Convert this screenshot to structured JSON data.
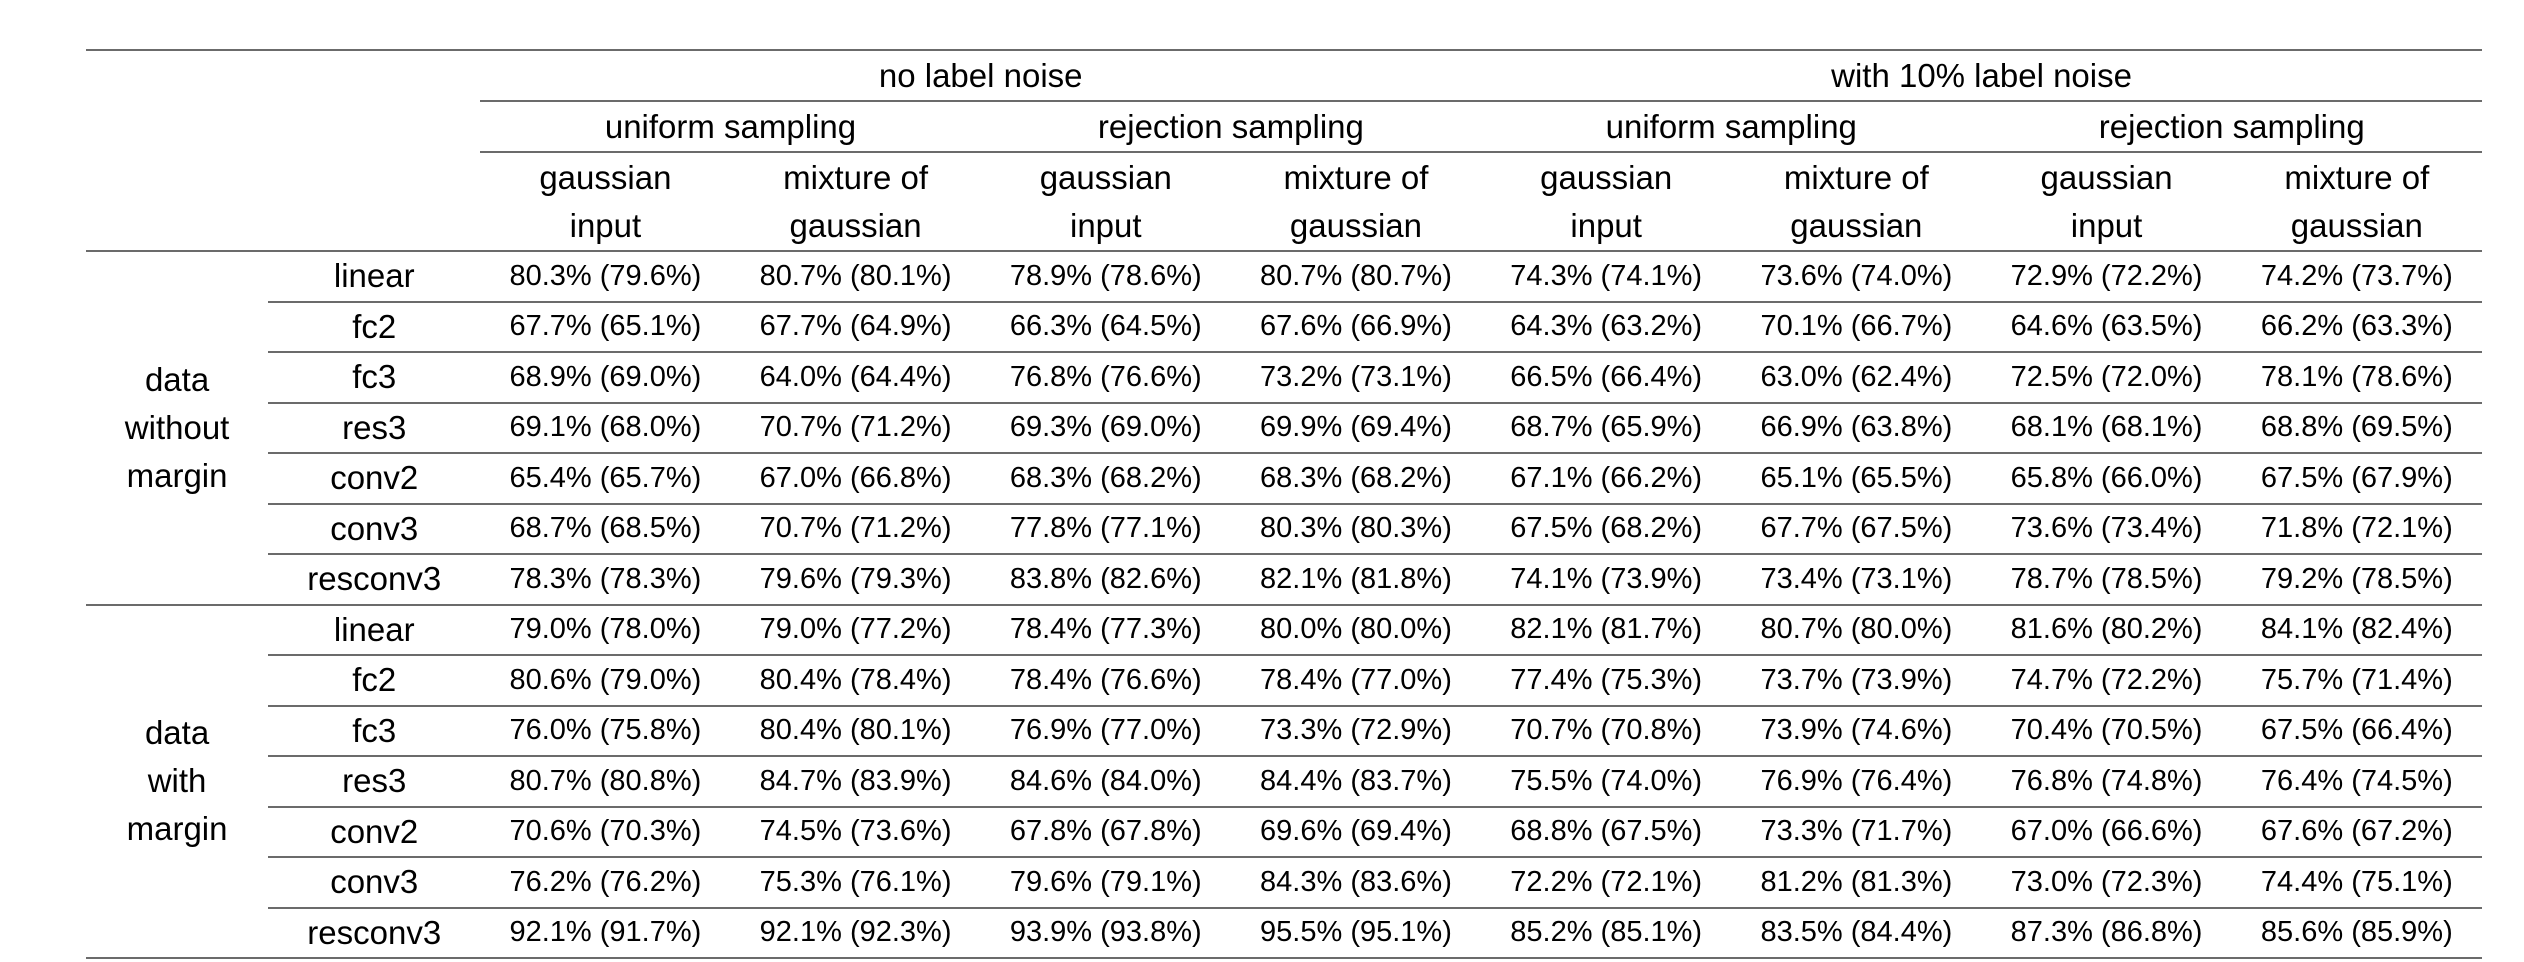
{
  "header": {
    "noise_groups": [
      "no label noise",
      "with 10% label noise"
    ],
    "sampling_groups": [
      "uniform sampling",
      "rejection sampling",
      "uniform sampling",
      "rejection sampling"
    ],
    "input_types": [
      {
        "line1": "gaussian",
        "line2": "input"
      },
      {
        "line1": "mixture of",
        "line2": "gaussian"
      },
      {
        "line1": "gaussian",
        "line2": "input"
      },
      {
        "line1": "mixture of",
        "line2": "gaussian"
      },
      {
        "line1": "gaussian",
        "line2": "input"
      },
      {
        "line1": "mixture of",
        "line2": "gaussian"
      },
      {
        "line1": "gaussian",
        "line2": "input"
      },
      {
        "line1": "mixture of",
        "line2": "gaussian"
      }
    ]
  },
  "sections": [
    {
      "label_lines": [
        "data",
        "without",
        "margin"
      ],
      "rows": [
        {
          "model": "linear",
          "values": [
            "80.3% (79.6%)",
            "80.7% (80.1%)",
            "78.9% (78.6%)",
            "80.7% (80.7%)",
            "74.3% (74.1%)",
            "73.6% (74.0%)",
            "72.9% (72.2%)",
            "74.2% (73.7%)"
          ]
        },
        {
          "model": "fc2",
          "values": [
            "67.7% (65.1%)",
            "67.7% (64.9%)",
            "66.3% (64.5%)",
            "67.6% (66.9%)",
            "64.3% (63.2%)",
            "70.1% (66.7%)",
            "64.6% (63.5%)",
            "66.2% (63.3%)"
          ]
        },
        {
          "model": "fc3",
          "values": [
            "68.9% (69.0%)",
            "64.0% (64.4%)",
            "76.8% (76.6%)",
            "73.2% (73.1%)",
            "66.5% (66.4%)",
            "63.0% (62.4%)",
            "72.5% (72.0%)",
            "78.1% (78.6%)"
          ]
        },
        {
          "model": "res3",
          "values": [
            "69.1% (68.0%)",
            "70.7% (71.2%)",
            "69.3% (69.0%)",
            "69.9% (69.4%)",
            "68.7% (65.9%)",
            "66.9% (63.8%)",
            "68.1% (68.1%)",
            "68.8% (69.5%)"
          ]
        },
        {
          "model": "conv2",
          "values": [
            "65.4% (65.7%)",
            "67.0% (66.8%)",
            "68.3% (68.2%)",
            "68.3% (68.2%)",
            "67.1% (66.2%)",
            "65.1% (65.5%)",
            "65.8% (66.0%)",
            "67.5% (67.9%)"
          ]
        },
        {
          "model": "conv3",
          "values": [
            "68.7% (68.5%)",
            "70.7% (71.2%)",
            "77.8% (77.1%)",
            "80.3% (80.3%)",
            "67.5% (68.2%)",
            "67.7% (67.5%)",
            "73.6% (73.4%)",
            "71.8% (72.1%)"
          ]
        },
        {
          "model": "resconv3",
          "values": [
            "78.3% (78.3%)",
            "79.6% (79.3%)",
            "83.8% (82.6%)",
            "82.1% (81.8%)",
            "74.1% (73.9%)",
            "73.4% (73.1%)",
            "78.7% (78.5%)",
            "79.2% (78.5%)"
          ]
        }
      ]
    },
    {
      "label_lines": [
        "data",
        "with",
        "margin"
      ],
      "rows": [
        {
          "model": "linear",
          "values": [
            "79.0% (78.0%)",
            "79.0% (77.2%)",
            "78.4% (77.3%)",
            "80.0% (80.0%)",
            "82.1% (81.7%)",
            "80.7% (80.0%)",
            "81.6% (80.2%)",
            "84.1% (82.4%)"
          ]
        },
        {
          "model": "fc2",
          "values": [
            "80.6% (79.0%)",
            "80.4% (78.4%)",
            "78.4% (76.6%)",
            "78.4% (77.0%)",
            "77.4% (75.3%)",
            "73.7% (73.9%)",
            "74.7% (72.2%)",
            "75.7% (71.4%)"
          ]
        },
        {
          "model": "fc3",
          "values": [
            "76.0% (75.8%)",
            "80.4% (80.1%)",
            "76.9% (77.0%)",
            "73.3% (72.9%)",
            "70.7% (70.8%)",
            "73.9% (74.6%)",
            "70.4% (70.5%)",
            "67.5% (66.4%)"
          ]
        },
        {
          "model": "res3",
          "values": [
            "80.7% (80.8%)",
            "84.7% (83.9%)",
            "84.6% (84.0%)",
            "84.4% (83.7%)",
            "75.5% (74.0%)",
            "76.9% (76.4%)",
            "76.8% (74.8%)",
            "76.4% (74.5%)"
          ]
        },
        {
          "model": "conv2",
          "values": [
            "70.6% (70.3%)",
            "74.5% (73.6%)",
            "67.8% (67.8%)",
            "69.6% (69.4%)",
            "68.8% (67.5%)",
            "73.3% (71.7%)",
            "67.0% (66.6%)",
            "67.6% (67.2%)"
          ]
        },
        {
          "model": "conv3",
          "values": [
            "76.2% (76.2%)",
            "75.3% (76.1%)",
            "79.6% (79.1%)",
            "84.3% (83.6%)",
            "72.2% (72.1%)",
            "81.2% (81.3%)",
            "73.0% (72.3%)",
            "74.4% (75.1%)"
          ]
        },
        {
          "model": "resconv3",
          "values": [
            "92.1% (91.7%)",
            "92.1% (92.3%)",
            "93.9% (93.8%)",
            "95.5% (95.1%)",
            "85.2% (85.1%)",
            "83.5% (84.4%)",
            "87.3% (86.8%)",
            "85.6% (85.9%)"
          ]
        }
      ]
    }
  ]
}
